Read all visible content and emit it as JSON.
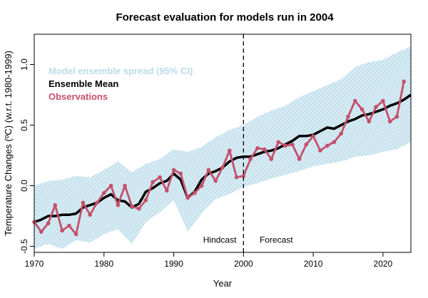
{
  "chart_data": {
    "type": "line",
    "title": "Forecast evaluation for models run in 2004",
    "xlabel": "Year",
    "ylabel": "Temperature Changes (ºC) (w.r.t. 1980-1999)",
    "xlim": [
      1970,
      2024
    ],
    "ylim": [
      -0.55,
      1.25
    ],
    "x_ticks": [
      1970,
      1980,
      1990,
      2000,
      2010,
      2020
    ],
    "y_ticks": [
      -0.5,
      0.0,
      0.5,
      1.0
    ],
    "x_tick_labels": [
      "1970",
      "1980",
      "1990",
      "2000",
      "2010",
      "2020"
    ],
    "y_tick_labels": [
      "-0.5",
      "0.0",
      "0.5",
      "1.0"
    ],
    "legend_position": "top-left",
    "grid": false,
    "colors": {
      "spread": "#b9dcea",
      "mean": "#000000",
      "observations": "#c5506a"
    },
    "divider_year": 2000,
    "annotations": [
      {
        "text": "Hindcast",
        "x": 1996.6,
        "y": -0.47
      },
      {
        "text": "Forecast",
        "x": 2004.7,
        "y": -0.47
      }
    ],
    "series": [
      {
        "name": "Model ensemble spread (95% CI)",
        "kind": "band",
        "x": [
          1970,
          1972,
          1974,
          1976,
          1978,
          1980,
          1982,
          1984,
          1986,
          1988,
          1990,
          1992,
          1994,
          1996,
          1998,
          2000,
          2002,
          2004,
          2006,
          2008,
          2010,
          2012,
          2014,
          2016,
          2018,
          2020,
          2022,
          2024
        ],
        "upper": [
          0.0,
          0.04,
          0.05,
          0.08,
          0.07,
          0.13,
          0.2,
          0.11,
          0.18,
          0.22,
          0.3,
          0.28,
          0.32,
          0.4,
          0.46,
          0.5,
          0.57,
          0.62,
          0.66,
          0.73,
          0.78,
          0.83,
          0.88,
          0.98,
          1.02,
          1.04,
          1.1,
          1.15
        ],
        "lower": [
          -0.52,
          -0.48,
          -0.52,
          -0.45,
          -0.47,
          -0.4,
          -0.36,
          -0.48,
          -0.3,
          -0.22,
          -0.12,
          -0.38,
          -0.23,
          -0.11,
          -0.07,
          -0.01,
          0.02,
          0.06,
          0.09,
          0.12,
          0.16,
          0.18,
          0.2,
          0.24,
          0.25,
          0.28,
          0.3,
          0.36
        ]
      },
      {
        "name": "Ensemble Mean",
        "kind": "line",
        "x": [
          1970,
          1971,
          1972,
          1973,
          1974,
          1975,
          1976,
          1977,
          1978,
          1979,
          1980,
          1981,
          1982,
          1983,
          1984,
          1985,
          1986,
          1987,
          1988,
          1989,
          1990,
          1991,
          1992,
          1993,
          1994,
          1995,
          1996,
          1997,
          1998,
          1999,
          2000,
          2001,
          2002,
          2003,
          2004,
          2005,
          2006,
          2007,
          2008,
          2009,
          2010,
          2011,
          2012,
          2013,
          2014,
          2015,
          2016,
          2017,
          2018,
          2019,
          2020,
          2021,
          2022,
          2023,
          2024
        ],
        "values": [
          -0.3,
          -0.28,
          -0.25,
          -0.25,
          -0.24,
          -0.24,
          -0.23,
          -0.18,
          -0.16,
          -0.14,
          -0.1,
          -0.07,
          -0.12,
          -0.13,
          -0.18,
          -0.15,
          -0.05,
          -0.02,
          0.02,
          0.04,
          0.1,
          0.05,
          -0.1,
          -0.05,
          0.05,
          0.1,
          0.12,
          0.15,
          0.2,
          0.23,
          0.24,
          0.24,
          0.26,
          0.28,
          0.29,
          0.31,
          0.34,
          0.37,
          0.41,
          0.41,
          0.42,
          0.45,
          0.48,
          0.47,
          0.5,
          0.53,
          0.55,
          0.58,
          0.59,
          0.61,
          0.63,
          0.66,
          0.68,
          0.71,
          0.75
        ]
      },
      {
        "name": "Observations",
        "kind": "line-points",
        "x": [
          1970,
          1971,
          1972,
          1973,
          1974,
          1975,
          1976,
          1977,
          1978,
          1979,
          1980,
          1981,
          1982,
          1983,
          1984,
          1985,
          1986,
          1987,
          1988,
          1989,
          1990,
          1991,
          1992,
          1993,
          1994,
          1995,
          1996,
          1997,
          1998,
          1999,
          2000,
          2001,
          2002,
          2003,
          2004,
          2005,
          2006,
          2007,
          2008,
          2009,
          2010,
          2011,
          2012,
          2013,
          2014,
          2015,
          2016,
          2017,
          2018,
          2019,
          2020,
          2021,
          2022,
          2023
        ],
        "values": [
          -0.3,
          -0.38,
          -0.31,
          -0.16,
          -0.37,
          -0.33,
          -0.4,
          -0.14,
          -0.24,
          -0.14,
          -0.06,
          0.0,
          -0.16,
          0.0,
          -0.17,
          -0.19,
          -0.12,
          0.03,
          0.07,
          -0.04,
          0.13,
          0.1,
          -0.1,
          -0.06,
          0.0,
          0.13,
          0.04,
          0.15,
          0.29,
          0.07,
          0.08,
          0.22,
          0.31,
          0.3,
          0.22,
          0.36,
          0.33,
          0.34,
          0.22,
          0.34,
          0.41,
          0.29,
          0.33,
          0.36,
          0.43,
          0.57,
          0.7,
          0.63,
          0.53,
          0.65,
          0.7,
          0.53,
          0.57,
          0.86
        ]
      }
    ]
  }
}
